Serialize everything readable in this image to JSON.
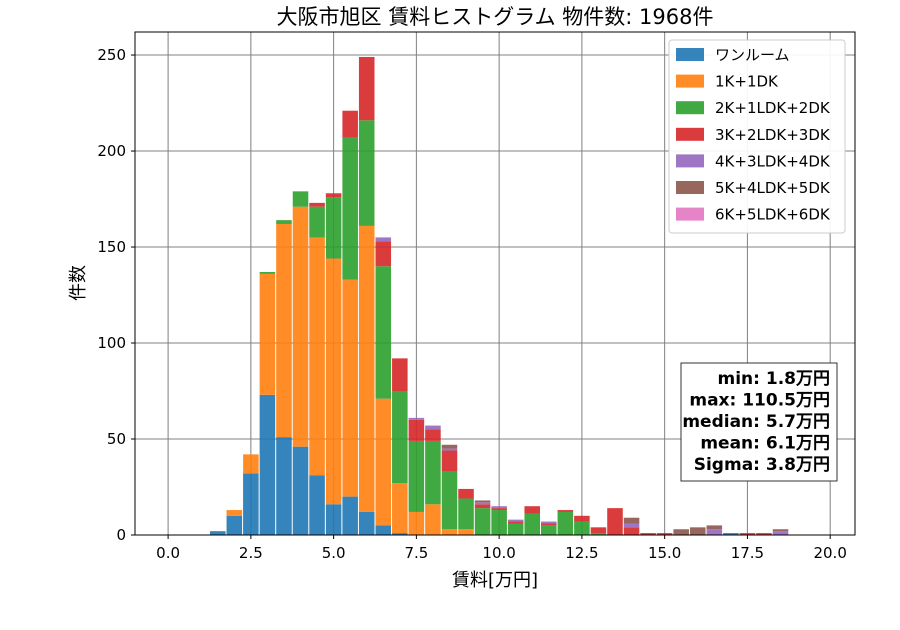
{
  "chart_data": {
    "type": "bar",
    "stacked": true,
    "title": "大阪市旭区 賃料ヒストグラム 物件数: 1968件",
    "xlabel": "賃料[万円]",
    "ylabel": "件数",
    "xlim": [
      -1.0,
      20.75
    ],
    "ylim": [
      0,
      262
    ],
    "bin_width": 0.5,
    "xticks": [
      0.0,
      2.5,
      5.0,
      7.5,
      10.0,
      12.5,
      15.0,
      17.5,
      20.0
    ],
    "xtick_labels": [
      "0.0",
      "2.5",
      "5.0",
      "7.5",
      "10.0",
      "12.5",
      "15.0",
      "17.5",
      "20.0"
    ],
    "yticks": [
      0,
      50,
      100,
      150,
      200,
      250
    ],
    "ytick_labels": [
      "0",
      "50",
      "100",
      "150",
      "200",
      "250"
    ],
    "grid": true,
    "legend_position": "top-right",
    "x": [
      1.5,
      2.0,
      2.5,
      3.0,
      3.5,
      4.0,
      4.5,
      5.0,
      5.5,
      6.0,
      6.5,
      7.0,
      7.5,
      8.0,
      8.5,
      9.0,
      9.5,
      10.0,
      10.5,
      11.0,
      11.5,
      12.0,
      12.5,
      13.0,
      13.5,
      14.0,
      14.5,
      15.0,
      15.5,
      16.0,
      16.5,
      17.0,
      17.5,
      18.0,
      18.5
    ],
    "series": [
      {
        "name": "ワンルーム",
        "color": "#1f77b4",
        "values": [
          2,
          10,
          32,
          73,
          51,
          46,
          31,
          16,
          20,
          12,
          5,
          1,
          0,
          0,
          0,
          0,
          0,
          0,
          0,
          0,
          0,
          0,
          0,
          0,
          0,
          0,
          0,
          0,
          0,
          0,
          0,
          1,
          0,
          0,
          0
        ]
      },
      {
        "name": "1K+1DK",
        "color": "#ff7f0e",
        "values": [
          0,
          3,
          10,
          63,
          111,
          125,
          124,
          128,
          113,
          149,
          66,
          26,
          12,
          16,
          3,
          3,
          0,
          0,
          0,
          0,
          0,
          0,
          0,
          0,
          0,
          0,
          0,
          0,
          0,
          0,
          0,
          0,
          0,
          0,
          0
        ]
      },
      {
        "name": "2K+1LDK+2DK",
        "color": "#2ca02c",
        "values": [
          0,
          0,
          0,
          1,
          2,
          8,
          16,
          32,
          74,
          55,
          69,
          48,
          37,
          33,
          30,
          16,
          14,
          13,
          6,
          11,
          5,
          12,
          7,
          1,
          0,
          0,
          0,
          0,
          0,
          0,
          0,
          0,
          0,
          0,
          0
        ]
      },
      {
        "name": "3K+2LDK+3DK",
        "color": "#d62728",
        "values": [
          0,
          0,
          0,
          0,
          0,
          0,
          2,
          2,
          14,
          33,
          13,
          17,
          11,
          6,
          11,
          5,
          2,
          1,
          1,
          4,
          1,
          1,
          3,
          3,
          14,
          4,
          1,
          1,
          0,
          0,
          0,
          0,
          1,
          1,
          0
        ]
      },
      {
        "name": "4K+3LDK+4DK",
        "color": "#9467bd",
        "values": [
          0,
          0,
          0,
          0,
          0,
          0,
          0,
          0,
          0,
          0,
          2,
          0,
          1,
          2,
          1,
          0,
          1,
          1,
          1,
          0,
          1,
          0,
          0,
          0,
          0,
          2,
          0,
          0,
          0,
          0,
          3,
          0,
          0,
          0,
          2
        ]
      },
      {
        "name": "5K+4LDK+5DK",
        "color": "#8c564b",
        "values": [
          0,
          0,
          0,
          0,
          0,
          0,
          0,
          0,
          0,
          0,
          0,
          0,
          0,
          0,
          2,
          0,
          1,
          0,
          0,
          0,
          0,
          0,
          0,
          0,
          0,
          3,
          0,
          0,
          3,
          4,
          2,
          0,
          0,
          0,
          1
        ]
      },
      {
        "name": "6K+5LDK+6DK",
        "color": "#e377c2",
        "values": [
          0,
          0,
          0,
          0,
          0,
          0,
          0,
          0,
          0,
          0,
          0,
          0,
          0,
          0,
          0,
          0,
          0,
          0,
          0,
          0,
          0,
          0,
          0,
          0,
          0,
          0,
          0,
          0,
          0,
          0,
          0,
          0,
          0,
          0,
          0
        ]
      }
    ],
    "stats_box": [
      "min: 1.8万円",
      "max: 110.5万円",
      "median: 5.7万円",
      "mean: 6.1万円",
      "Sigma: 3.8万円"
    ]
  }
}
